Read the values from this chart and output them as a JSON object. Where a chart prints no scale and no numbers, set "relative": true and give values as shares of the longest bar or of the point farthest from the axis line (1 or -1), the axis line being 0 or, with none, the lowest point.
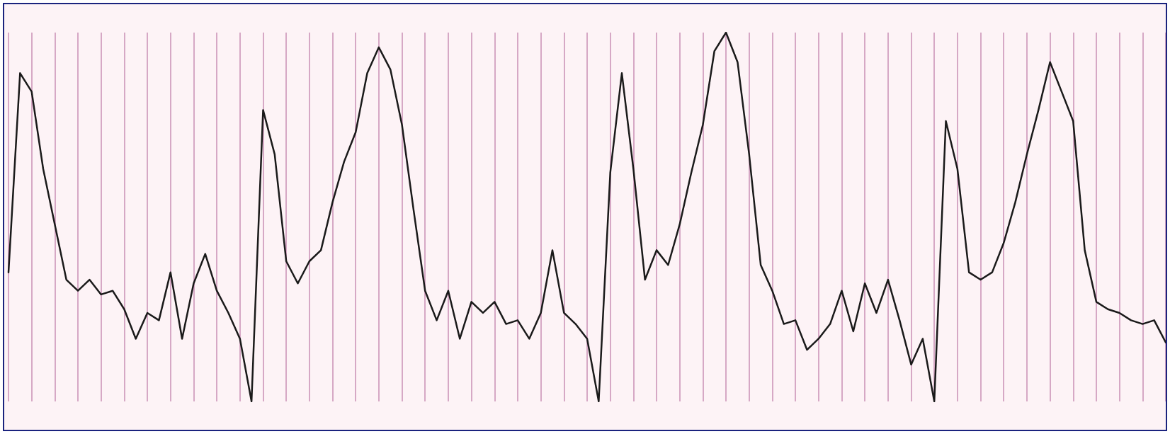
{
  "chart_data": {
    "type": "line",
    "relative": true,
    "grid": "x",
    "marker": "none",
    "line_style": "solid",
    "categories": [
      null,
      null,
      null,
      null,
      null,
      null,
      null,
      null,
      null,
      null,
      null,
      null,
      null,
      null,
      null,
      null,
      null,
      null,
      null,
      null,
      null,
      null,
      null,
      null,
      null,
      null,
      null,
      null,
      null,
      null,
      null,
      null,
      null,
      null,
      null,
      null,
      null,
      null,
      null,
      null,
      null,
      null,
      null,
      null,
      null,
      null,
      null,
      null,
      null,
      null,
      null,
      null,
      null,
      null,
      null,
      null,
      null,
      null,
      null,
      null,
      null,
      null,
      null,
      null,
      null,
      null,
      null,
      null,
      null,
      null,
      null,
      null,
      null,
      null,
      null,
      null,
      null,
      null,
      null,
      null,
      null,
      null,
      null,
      null,
      null,
      null,
      null,
      null,
      null,
      null,
      null,
      null,
      null,
      null,
      null,
      null,
      null,
      null,
      null,
      null,
      null
    ],
    "series": [
      {
        "color": "#1a1a1a",
        "values": [
          0.35,
          0.89,
          0.84,
          0.63,
          0.48,
          0.33,
          0.3,
          0.33,
          0.29,
          0.3,
          0.25,
          0.17,
          0.24,
          0.22,
          0.35,
          0.17,
          0.32,
          0.4,
          0.3,
          0.24,
          0.17,
          0,
          0.79,
          0.67,
          0.38,
          0.32,
          0.38,
          0.41,
          0.54,
          0.65,
          0.73,
          0.89,
          0.96,
          0.9,
          0.75,
          0.52,
          0.3,
          0.22,
          0.3,
          0.17,
          0.27,
          0.24,
          0.27,
          0.21,
          0.22,
          0.17,
          0.24,
          0.41,
          0.24,
          0.21,
          0.17,
          0,
          0.62,
          0.89,
          0.63,
          0.33,
          0.41,
          0.37,
          0.48,
          0.62,
          0.75,
          0.95,
          1,
          0.92,
          0.67,
          0.37,
          0.3,
          0.21,
          0.22,
          0.14,
          0.17,
          0.21,
          0.3,
          0.19,
          0.32,
          0.24,
          0.33,
          0.22,
          0.1,
          0.17,
          0,
          0.76,
          0.63,
          0.35,
          0.33,
          0.35,
          0.43,
          0.54,
          0.67,
          0.79,
          0.92,
          0.84,
          0.76,
          0.41,
          0.27,
          0.25,
          0.24,
          0.22,
          0.21,
          0.22,
          0.16
        ]
      }
    ]
  }
}
